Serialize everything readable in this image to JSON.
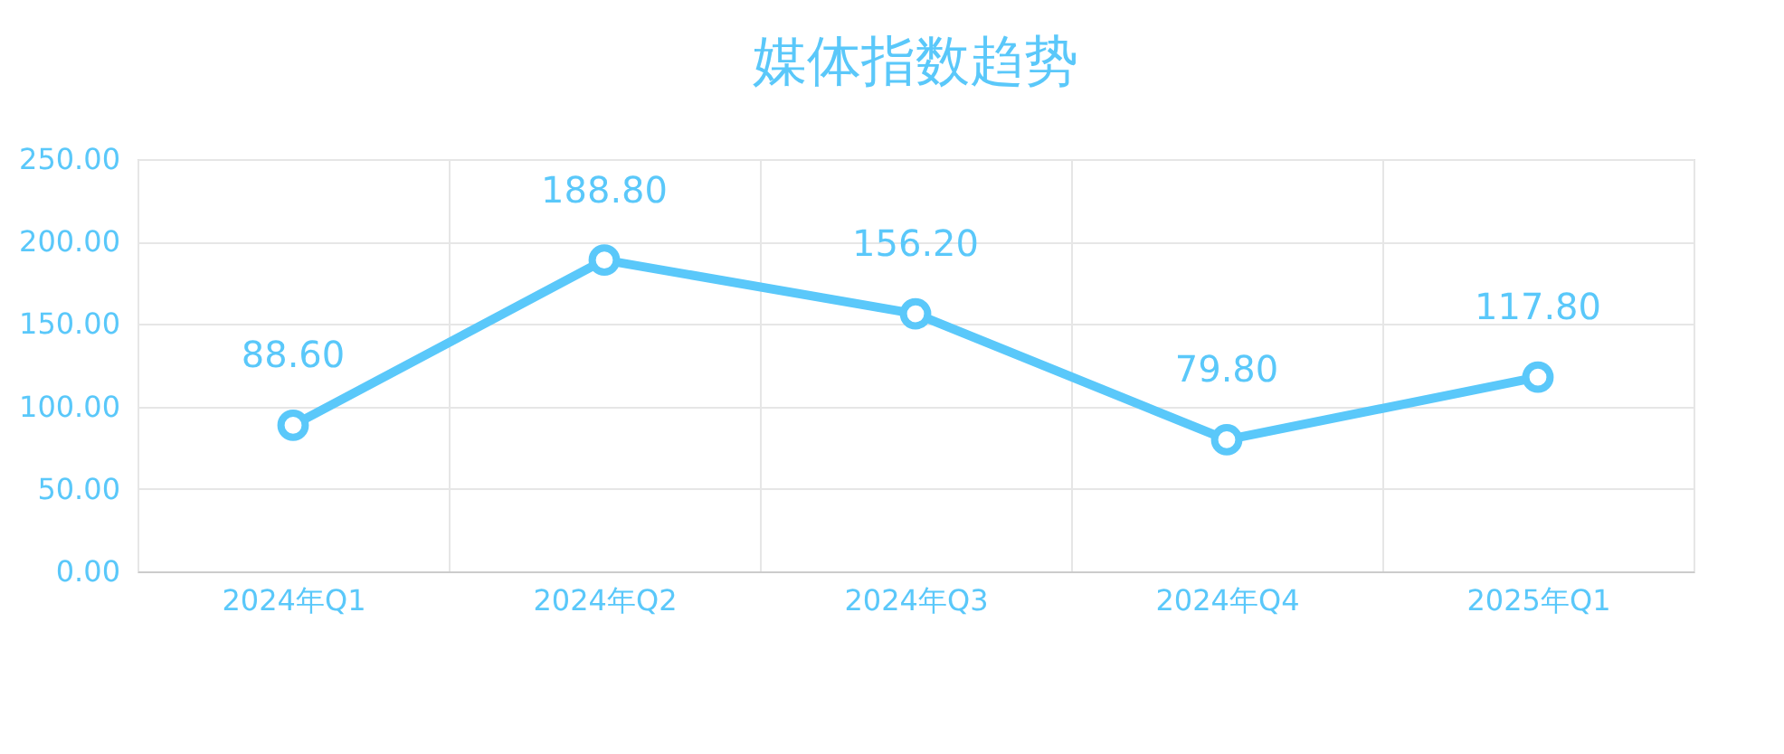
{
  "chart_data": {
    "type": "line",
    "title": "媒体指数趋势",
    "categories": [
      "2024年Q1",
      "2024年Q2",
      "2024年Q3",
      "2024年Q4",
      "2025年Q1"
    ],
    "series": [
      {
        "color": "#5ac8fa",
        "values": [
          88.6,
          188.8,
          156.2,
          79.8,
          117.8
        ],
        "value_labels": [
          "88.60",
          "188.80",
          "156.20",
          "79.80",
          "117.80"
        ]
      }
    ],
    "ylim": [
      0,
      250
    ],
    "yticks": [
      {
        "value": 0,
        "label": "0.00"
      },
      {
        "value": 50,
        "label": "50.00"
      },
      {
        "value": 100,
        "label": "100.00"
      },
      {
        "value": 150,
        "label": "150.00"
      },
      {
        "value": 200,
        "label": "200.00"
      },
      {
        "value": 250,
        "label": "250.00"
      }
    ],
    "grid": true,
    "marker": "circle",
    "line_style": "solid"
  }
}
